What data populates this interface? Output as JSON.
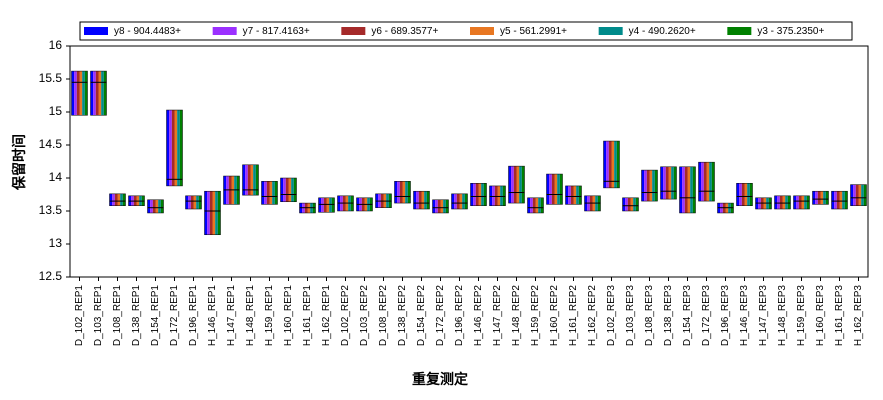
{
  "chart_data": {
    "type": "range",
    "xlabel": "重复测定",
    "ylabel": "保留时间",
    "categories": [
      "D_102_REP1",
      "D_103_REP1",
      "D_108_REP1",
      "D_138_REP1",
      "D_154_REP1",
      "D_172_REP1",
      "D_196_REP1",
      "H_146_REP1",
      "H_147_REP1",
      "H_148_REP1",
      "H_159_REP1",
      "H_160_REP1",
      "H_161_REP1",
      "H_162_REP1",
      "D_102_REP2",
      "D_103_REP2",
      "D_108_REP2",
      "D_138_REP2",
      "D_154_REP2",
      "D_172_REP2",
      "D_196_REP2",
      "H_146_REP2",
      "H_147_REP2",
      "H_148_REP2",
      "H_159_REP2",
      "H_160_REP2",
      "H_161_REP2",
      "H_162_REP2",
      "D_102_REP3",
      "D_103_REP3",
      "D_108_REP3",
      "D_138_REP3",
      "D_154_REP3",
      "D_172_REP3",
      "D_196_REP3",
      "H_146_REP3",
      "H_147_REP3",
      "H_148_REP3",
      "H_159_REP3",
      "H_160_REP3",
      "H_161_REP3",
      "H_162_REP3"
    ],
    "high": [
      15.62,
      15.62,
      13.76,
      13.73,
      13.67,
      15.03,
      13.73,
      13.8,
      14.03,
      14.2,
      13.95,
      14.0,
      13.62,
      13.7,
      13.73,
      13.7,
      13.76,
      13.95,
      13.8,
      13.67,
      13.76,
      13.92,
      13.88,
      14.18,
      13.7,
      14.06,
      13.88,
      13.73,
      14.56,
      13.7,
      14.12,
      14.17,
      14.17,
      14.24,
      13.62,
      13.92,
      13.7,
      13.73,
      13.73,
      13.8,
      13.8,
      13.9
    ],
    "low": [
      14.95,
      14.95,
      13.58,
      13.58,
      13.47,
      13.88,
      13.53,
      13.14,
      13.6,
      13.74,
      13.6,
      13.64,
      13.47,
      13.48,
      13.5,
      13.5,
      13.55,
      13.62,
      13.53,
      13.47,
      13.53,
      13.58,
      13.58,
      13.62,
      13.47,
      13.6,
      13.6,
      13.5,
      13.85,
      13.5,
      13.65,
      13.68,
      13.47,
      13.65,
      13.47,
      13.58,
      13.53,
      13.53,
      13.53,
      13.6,
      13.53,
      13.58
    ],
    "median": [
      15.45,
      15.45,
      13.65,
      13.65,
      13.55,
      13.98,
      13.65,
      13.5,
      13.82,
      13.82,
      13.72,
      13.75,
      13.55,
      13.6,
      13.62,
      13.6,
      13.65,
      13.72,
      13.62,
      13.55,
      13.62,
      13.72,
      13.72,
      13.78,
      13.55,
      13.75,
      13.72,
      13.62,
      13.95,
      13.58,
      13.78,
      13.8,
      13.7,
      13.8,
      13.55,
      13.72,
      13.62,
      13.62,
      13.65,
      13.68,
      13.65,
      13.7
    ],
    "series": [
      {
        "name": "y8 - 904.4483+",
        "color": "#0000ff"
      },
      {
        "name": "y7 - 817.4163+",
        "color": "#9b30ff"
      },
      {
        "name": "y6 - 689.3577+",
        "color": "#a52a2a"
      },
      {
        "name": "y5 - 561.2991+",
        "color": "#e87722"
      },
      {
        "name": "y4 - 490.2620+",
        "color": "#008b8b"
      },
      {
        "name": "y3 - 375.2350+",
        "color": "#008000"
      }
    ],
    "ylim": [
      12.5,
      16
    ],
    "yticks": [
      12.5,
      13,
      13.5,
      14,
      14.5,
      15,
      15.5,
      16
    ]
  }
}
